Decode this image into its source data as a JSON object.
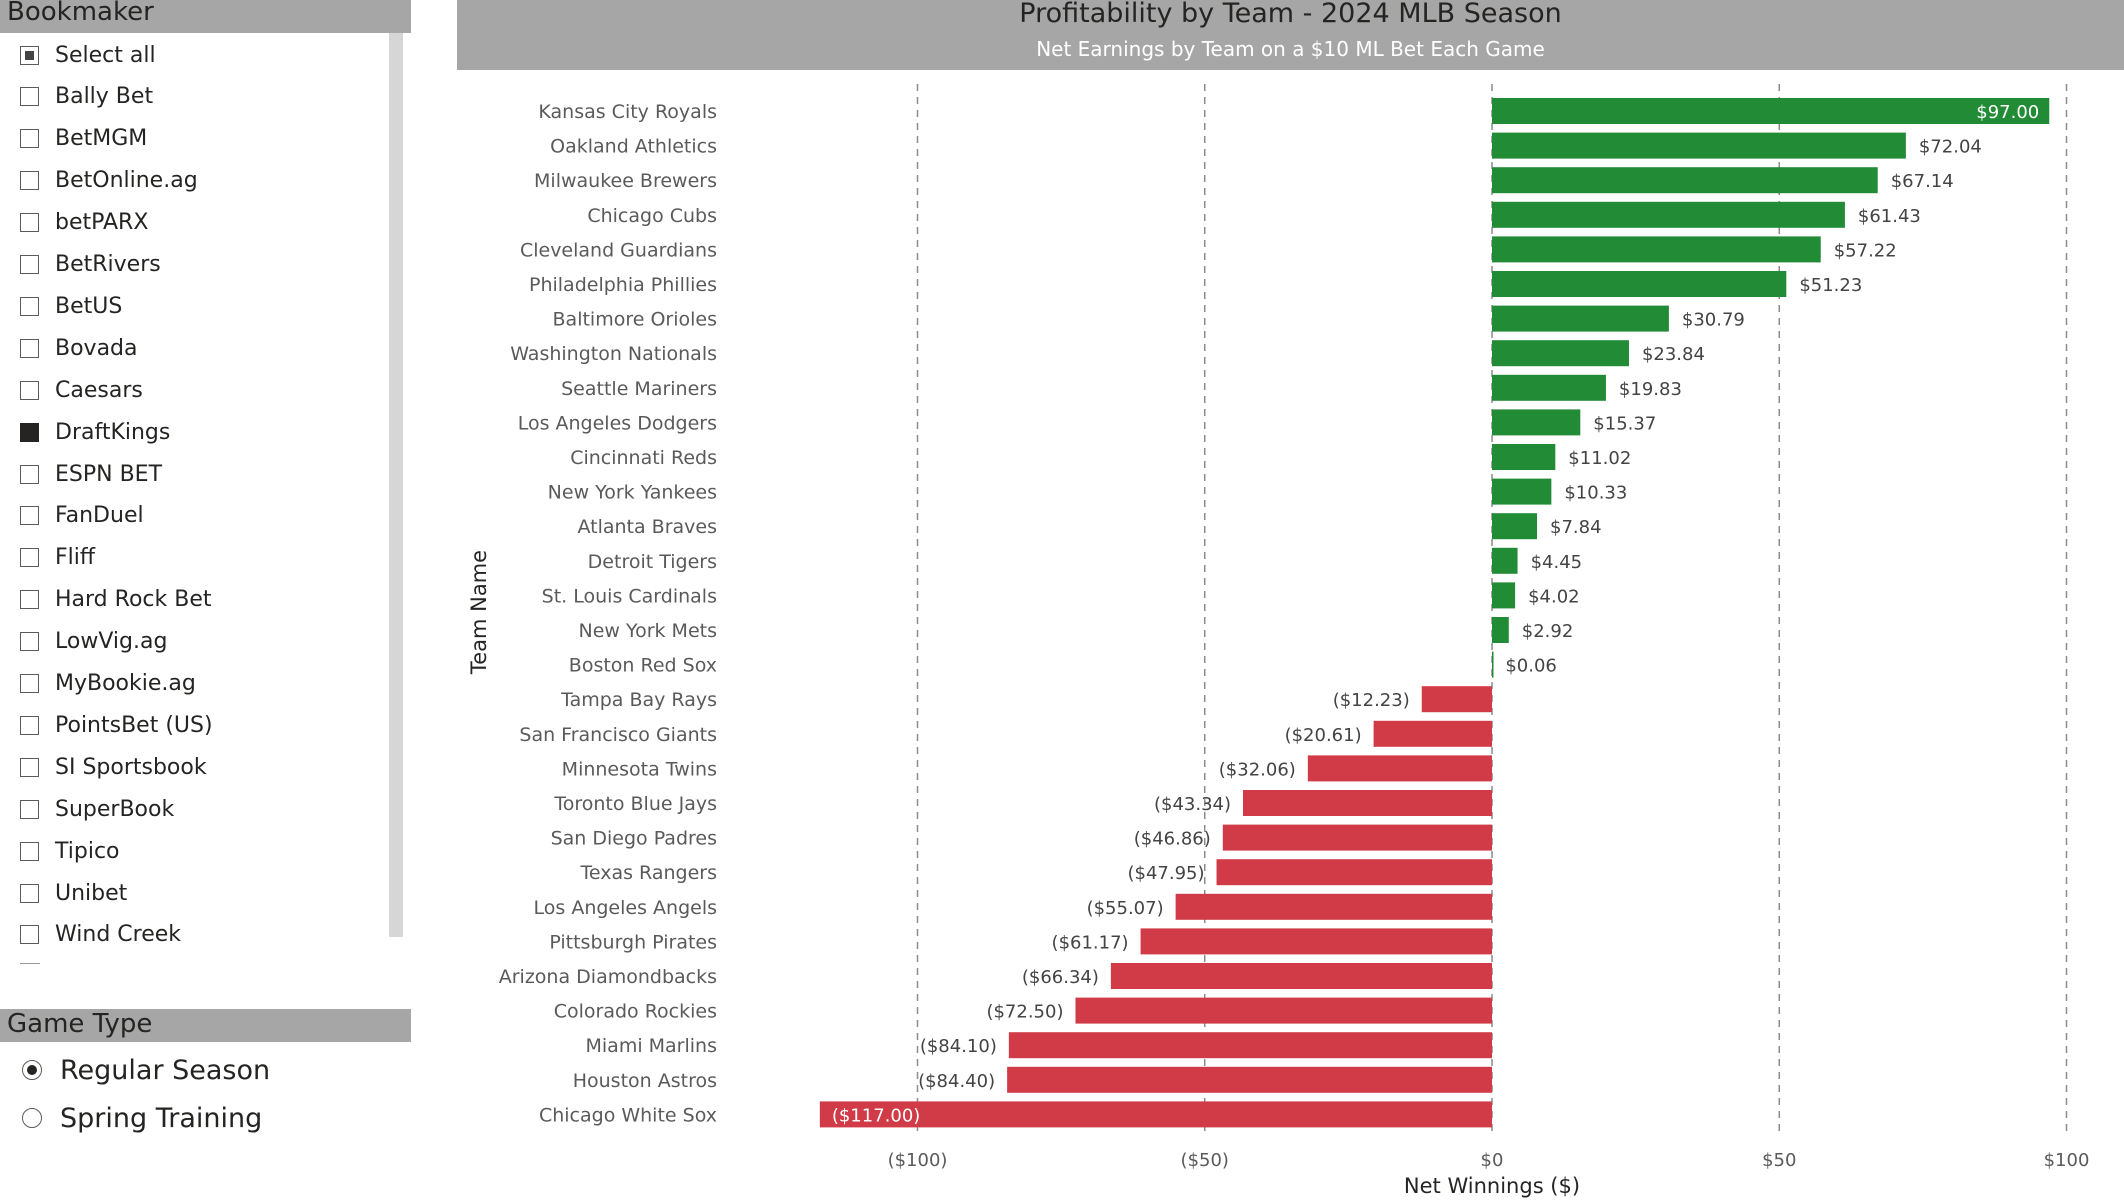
{
  "bookmaker": {
    "title": "Bookmaker",
    "items": [
      {
        "label": "Select all",
        "state": "partial"
      },
      {
        "label": "Bally Bet",
        "state": "unchecked"
      },
      {
        "label": "BetMGM",
        "state": "unchecked"
      },
      {
        "label": "BetOnline.ag",
        "state": "unchecked"
      },
      {
        "label": "betPARX",
        "state": "unchecked"
      },
      {
        "label": "BetRivers",
        "state": "unchecked"
      },
      {
        "label": "BetUS",
        "state": "unchecked"
      },
      {
        "label": "Bovada",
        "state": "unchecked"
      },
      {
        "label": "Caesars",
        "state": "unchecked"
      },
      {
        "label": "DraftKings",
        "state": "checked"
      },
      {
        "label": "ESPN BET",
        "state": "unchecked"
      },
      {
        "label": "FanDuel",
        "state": "unchecked"
      },
      {
        "label": "Fliff",
        "state": "unchecked"
      },
      {
        "label": "Hard Rock Bet",
        "state": "unchecked"
      },
      {
        "label": "LowVig.ag",
        "state": "unchecked"
      },
      {
        "label": "MyBookie.ag",
        "state": "unchecked"
      },
      {
        "label": "PointsBet (US)",
        "state": "unchecked"
      },
      {
        "label": "SI Sportsbook",
        "state": "unchecked"
      },
      {
        "label": "SuperBook",
        "state": "unchecked"
      },
      {
        "label": "Tipico",
        "state": "unchecked"
      },
      {
        "label": "Unibet",
        "state": "unchecked"
      },
      {
        "label": "Wind Creek",
        "state": "unchecked"
      }
    ]
  },
  "game_type": {
    "title": "Game Type",
    "options": [
      {
        "label": "Regular Season",
        "selected": true
      },
      {
        "label": "Spring Training",
        "selected": false
      }
    ]
  },
  "colors": {
    "positive": "#228b36",
    "negative": "#d13b47",
    "header_bg": "#a6a6a6"
  },
  "chart_data": {
    "type": "bar",
    "orientation": "horizontal",
    "title": "Profitability by Team - 2024 MLB Season",
    "subtitle": "Net Earnings by Team on a $10 ML Bet Each Game",
    "xlabel": "Net Winnings ($)",
    "ylabel": "Team Name",
    "xlim": [
      -117,
      100
    ],
    "xticks": [
      -100,
      -50,
      0,
      50,
      100
    ],
    "xtick_labels": [
      "($100)",
      "($50)",
      "$0",
      "$50",
      "$100"
    ],
    "grid": "vertical dashed",
    "categories": [
      "Kansas City Royals",
      "Oakland Athletics",
      "Milwaukee Brewers",
      "Chicago Cubs",
      "Cleveland Guardians",
      "Philadelphia Phillies",
      "Baltimore Orioles",
      "Washington Nationals",
      "Seattle Mariners",
      "Los Angeles Dodgers",
      "Cincinnati Reds",
      "New York Yankees",
      "Atlanta Braves",
      "Detroit Tigers",
      "St. Louis Cardinals",
      "New York Mets",
      "Boston Red Sox",
      "Tampa Bay Rays",
      "San Francisco Giants",
      "Minnesota Twins",
      "Toronto Blue Jays",
      "San Diego Padres",
      "Texas Rangers",
      "Los Angeles Angels",
      "Pittsburgh Pirates",
      "Arizona Diamondbacks",
      "Colorado Rockies",
      "Miami Marlins",
      "Houston Astros",
      "Chicago White Sox"
    ],
    "values": [
      97.0,
      72.04,
      67.14,
      61.43,
      57.22,
      51.23,
      30.79,
      23.84,
      19.83,
      15.37,
      11.02,
      10.33,
      7.84,
      4.45,
      4.02,
      2.92,
      0.06,
      -12.23,
      -20.61,
      -32.06,
      -43.34,
      -46.86,
      -47.95,
      -55.07,
      -61.17,
      -66.34,
      -72.5,
      -84.1,
      -84.4,
      -117.0
    ],
    "value_labels": [
      "$97.00",
      "$72.04",
      "$67.14",
      "$61.43",
      "$57.22",
      "$51.23",
      "$30.79",
      "$23.84",
      "$19.83",
      "$15.37",
      "$11.02",
      "$10.33",
      "$7.84",
      "$4.45",
      "$4.02",
      "$2.92",
      "$0.06",
      "($12.23)",
      "($20.61)",
      "($32.06)",
      "($43.34)",
      "($46.86)",
      "($47.95)",
      "($55.07)",
      "($61.17)",
      "($66.34)",
      "($72.50)",
      "($84.10)",
      "($84.40)",
      "($117.00)"
    ]
  }
}
